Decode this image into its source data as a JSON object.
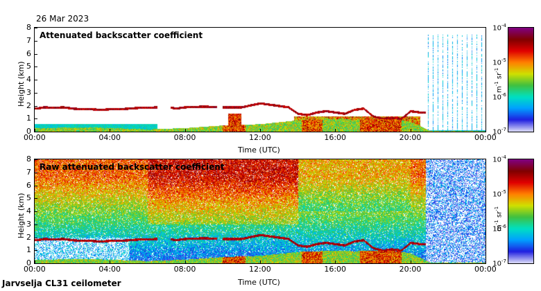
{
  "date": "26 Mar 2023",
  "footer": "Jarvselja CL31 ceilometer",
  "colors": {
    "colormap": [
      "#d8d8f8",
      "#2020e0",
      "#00a0ff",
      "#00e0c0",
      "#40c040",
      "#d0e000",
      "#ff8000",
      "#e00000",
      "#800000",
      "#800080"
    ]
  },
  "chart_data": [
    {
      "type": "heatmap",
      "title": "Attenuated backscatter coefficient",
      "xlabel": "Time (UTC)",
      "ylabel": "Height (km)",
      "x_ticks": [
        "00:00",
        "04:00",
        "08:00",
        "12:00",
        "16:00",
        "20:00",
        "00:00"
      ],
      "y_ticks": [
        "0",
        "1",
        "2",
        "3",
        "4",
        "5",
        "6",
        "7",
        "8"
      ],
      "xlim_hours": [
        0,
        24
      ],
      "ylim": [
        0,
        8
      ],
      "colorbar": {
        "ticks": [
          "10",
          "10",
          "10",
          "10"
        ],
        "exponents": [
          "-4",
          "-5",
          "-6",
          "-7"
        ],
        "unit_base": [
          "m",
          "sr"
        ],
        "unit_exp": [
          "-1",
          "-1"
        ],
        "scale": "log",
        "range": [
          1e-07,
          0.0001
        ]
      },
      "features": {
        "cloud_base_km": [
          [
            0.1,
            1.8
          ],
          [
            0.5,
            1.9
          ],
          [
            1.0,
            1.85
          ],
          [
            1.5,
            1.9
          ],
          [
            2.0,
            1.8
          ],
          [
            2.5,
            1.75
          ],
          [
            3.0,
            1.75
          ],
          [
            3.5,
            1.7
          ],
          [
            4.0,
            1.75
          ],
          [
            4.5,
            1.75
          ],
          [
            5.0,
            1.8
          ],
          [
            5.5,
            1.85
          ],
          [
            6.0,
            1.85
          ],
          [
            6.5,
            1.9
          ],
          [
            7.0,
            1.95
          ],
          [
            7.5,
            1.8
          ],
          [
            8.0,
            1.9
          ],
          [
            9.0,
            1.95
          ],
          [
            10.0,
            1.9
          ],
          [
            11.0,
            1.9
          ],
          [
            11.5,
            2.05
          ],
          [
            12.0,
            2.2
          ],
          [
            12.5,
            2.1
          ],
          [
            13.0,
            2.0
          ],
          [
            13.5,
            1.9
          ],
          [
            14.0,
            1.4
          ],
          [
            14.5,
            1.3
          ],
          [
            15.0,
            1.5
          ],
          [
            15.5,
            1.6
          ],
          [
            16.0,
            1.5
          ],
          [
            16.5,
            1.4
          ],
          [
            17.0,
            1.7
          ],
          [
            17.5,
            1.8
          ],
          [
            18.0,
            1.2
          ],
          [
            18.5,
            1.0
          ],
          [
            19.0,
            1.1
          ],
          [
            19.5,
            1.0
          ],
          [
            20.0,
            1.6
          ],
          [
            20.5,
            1.5
          ]
        ],
        "boundary_layer_km": [
          [
            0,
            0.3
          ],
          [
            3,
            0.35
          ],
          [
            6,
            0.2
          ],
          [
            8,
            0.3
          ],
          [
            10,
            0.5
          ],
          [
            12,
            0.6
          ],
          [
            14,
            0.9
          ],
          [
            15,
            0.95
          ],
          [
            16,
            1.0
          ],
          [
            17,
            0.95
          ],
          [
            18,
            1.0
          ],
          [
            19,
            1.0
          ],
          [
            20,
            0.8
          ],
          [
            21,
            0.1
          ],
          [
            24,
            0.1
          ]
        ]
      }
    },
    {
      "type": "heatmap",
      "title": "Raw attenuated backscatter coefficient",
      "xlabel": "Time (UTC)",
      "ylabel": "Height (km)",
      "x_ticks": [
        "00:00",
        "04:00",
        "08:00",
        "12:00",
        "16:00",
        "20:00",
        "00:00"
      ],
      "y_ticks": [
        "0",
        "1",
        "2",
        "3",
        "4",
        "5",
        "6",
        "7",
        "8"
      ],
      "xlim_hours": [
        0,
        24
      ],
      "ylim": [
        0,
        8
      ],
      "colorbar": {
        "ticks": [
          "10",
          "10",
          "10",
          "10"
        ],
        "exponents": [
          "-4",
          "-5",
          "-6",
          "-7"
        ],
        "unit_base": [
          "m",
          "sr"
        ],
        "unit_exp": [
          "-1",
          "-1"
        ],
        "scale": "log",
        "range": [
          1e-07,
          0.0001
        ]
      }
    }
  ]
}
